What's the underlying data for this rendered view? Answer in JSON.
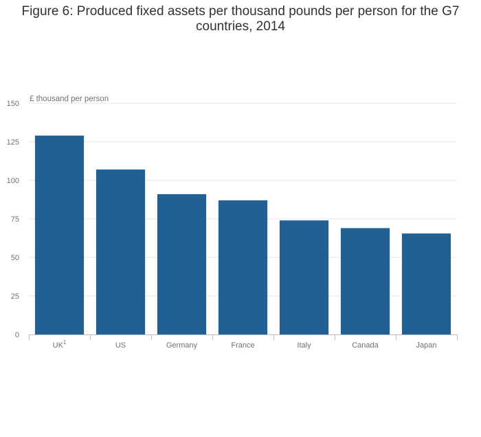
{
  "chart_data": {
    "type": "bar",
    "title": "Figure 6: Produced fixed assets per thousand pounds per person for the G7 countries, 2014",
    "ylabel": "£ thousand per person",
    "xlabel": "",
    "categories": [
      "UK",
      "US",
      "Germany",
      "France",
      "Italy",
      "Canada",
      "Japan"
    ],
    "category_superscripts": [
      "1",
      "",
      "",
      "",
      "",
      "",
      ""
    ],
    "values": [
      129,
      107,
      91,
      87,
      74,
      69,
      65.5
    ],
    "ylim": [
      0,
      150
    ],
    "yticks": [
      0,
      25,
      50,
      75,
      100,
      125,
      150
    ],
    "grid": true,
    "legend": "none",
    "colors": {
      "bar": "#206095",
      "grid": "#e6e6e6",
      "axis": "#bebebe",
      "text": "#707071",
      "title": "#323132"
    }
  }
}
